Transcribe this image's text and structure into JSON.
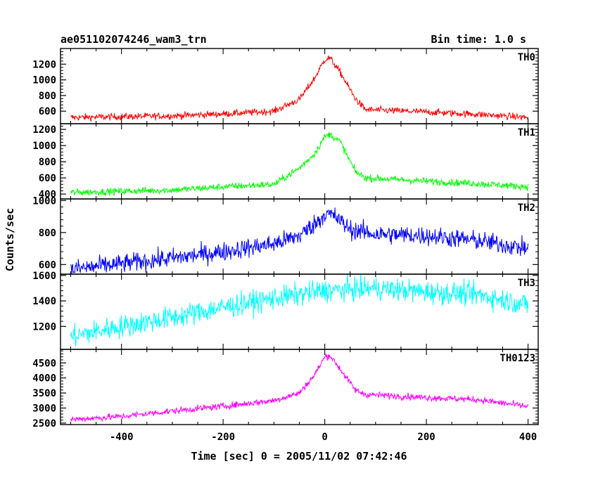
{
  "chart_data": {
    "type": "line",
    "title": "ae051102074246_wam3_trn",
    "subtitle": "Bin time: 1.0 s",
    "xlabel": "Time [sec] 0 = 2005/11/02 07:42:46",
    "ylabel": "Counts/sec",
    "xlim": [
      -520,
      420
    ],
    "x_ticks": [
      -400,
      -200,
      0,
      200,
      400
    ],
    "grid": false,
    "panels": [
      {
        "name": "TH0",
        "color": "#ff0000",
        "ylim": [
          440,
          1400
        ],
        "y_ticks": [
          600,
          800,
          1000,
          1200
        ],
        "noise": 22,
        "points": [
          [
            -500,
            520
          ],
          [
            -300,
            540
          ],
          [
            -200,
            565
          ],
          [
            -100,
            600
          ],
          [
            -50,
            750
          ],
          [
            -20,
            1020
          ],
          [
            0,
            1260
          ],
          [
            10,
            1280
          ],
          [
            30,
            1100
          ],
          [
            60,
            760
          ],
          [
            80,
            620
          ],
          [
            200,
            590
          ],
          [
            300,
            560
          ],
          [
            400,
            520
          ]
        ]
      },
      {
        "name": "TH1",
        "color": "#00ff00",
        "ylim": [
          340,
          1270
        ],
        "y_ticks": [
          400,
          600,
          800,
          1000,
          1200
        ],
        "noise": 22,
        "points": [
          [
            -500,
            420
          ],
          [
            -300,
            450
          ],
          [
            -200,
            490
          ],
          [
            -100,
            520
          ],
          [
            -50,
            720
          ],
          [
            -20,
            900
          ],
          [
            0,
            1110
          ],
          [
            10,
            1140
          ],
          [
            30,
            1050
          ],
          [
            60,
            680
          ],
          [
            80,
            600
          ],
          [
            200,
            560
          ],
          [
            300,
            530
          ],
          [
            400,
            490
          ]
        ]
      },
      {
        "name": "TH2",
        "color": "#0000ff",
        "ylim": [
          540,
          1010
        ],
        "y_ticks": [
          600,
          800,
          1000
        ],
        "noise": 30,
        "points": [
          [
            -500,
            570
          ],
          [
            -400,
            605
          ],
          [
            -300,
            640
          ],
          [
            -200,
            680
          ],
          [
            -100,
            730
          ],
          [
            -50,
            780
          ],
          [
            -10,
            880
          ],
          [
            0,
            920
          ],
          [
            20,
            900
          ],
          [
            50,
            820
          ],
          [
            100,
            790
          ],
          [
            200,
            780
          ],
          [
            300,
            750
          ],
          [
            400,
            700
          ]
        ]
      },
      {
        "name": "TH3",
        "color": "#00ffff",
        "ylim": [
          1020,
          1610
        ],
        "y_ticks": [
          1200,
          1400,
          1600
        ],
        "noise": 45,
        "points": [
          [
            -500,
            1120
          ],
          [
            -400,
            1200
          ],
          [
            -300,
            1270
          ],
          [
            -200,
            1350
          ],
          [
            -100,
            1420
          ],
          [
            0,
            1480
          ],
          [
            100,
            1500
          ],
          [
            200,
            1470
          ],
          [
            300,
            1450
          ],
          [
            400,
            1370
          ]
        ]
      },
      {
        "name": "TH0123",
        "color": "#ff00ff",
        "ylim": [
          2450,
          4950
        ],
        "y_ticks": [
          2500,
          3000,
          3500,
          4000,
          4500
        ],
        "noise": 55,
        "points": [
          [
            -500,
            2620
          ],
          [
            -400,
            2720
          ],
          [
            -300,
            2900
          ],
          [
            -200,
            3060
          ],
          [
            -100,
            3250
          ],
          [
            -50,
            3500
          ],
          [
            -20,
            4100
          ],
          [
            0,
            4700
          ],
          [
            10,
            4750
          ],
          [
            30,
            4300
          ],
          [
            60,
            3600
          ],
          [
            80,
            3450
          ],
          [
            200,
            3350
          ],
          [
            300,
            3280
          ],
          [
            400,
            3050
          ]
        ]
      }
    ]
  }
}
